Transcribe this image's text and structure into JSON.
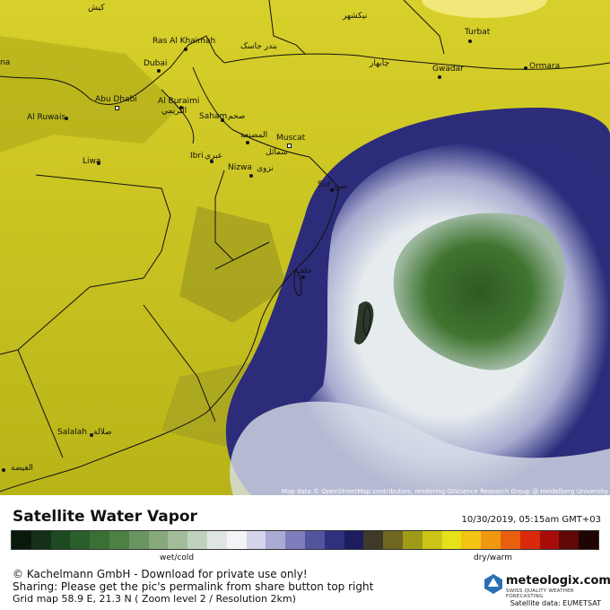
{
  "map": {
    "attribution": "Map data © OpenStreetMap contributors, rendering GIScience Research Group @ Heidelberg University",
    "places": [
      {
        "id": "kish",
        "label": "کیش"
      },
      {
        "id": "bandar",
        "label": "بندر جاسک"
      },
      {
        "id": "rasalkhaimah",
        "label": "Ras Al Khaimah"
      },
      {
        "id": "dubai",
        "label": "Dubai"
      },
      {
        "id": "abudhabi",
        "label": "Abu Dhabi"
      },
      {
        "id": "alburaimi",
        "label": "Al Buraimi"
      },
      {
        "id": "alburaimi_ar",
        "label": "البريمي"
      },
      {
        "id": "alruwais",
        "label": "Al Ruwais"
      },
      {
        "id": "liwa",
        "label": "Liwa"
      },
      {
        "id": "saham",
        "label": "Saham"
      },
      {
        "id": "saham_ar",
        "label": "صحم"
      },
      {
        "id": "musanaa",
        "label": "المصنعة"
      },
      {
        "id": "muscat",
        "label": "Muscat"
      },
      {
        "id": "ibri",
        "label": "Ibri"
      },
      {
        "id": "ibri_ar",
        "label": "عبري"
      },
      {
        "id": "samail",
        "label": "سمائل"
      },
      {
        "id": "nizwa",
        "label": "Nizwa"
      },
      {
        "id": "nizwa_ar",
        "label": "نزوى"
      },
      {
        "id": "sur",
        "label": "Sur"
      },
      {
        "id": "sur_ar",
        "label": "صور"
      },
      {
        "id": "turbat",
        "label": "Turbat"
      },
      {
        "id": "gwadar",
        "label": "Gwadar"
      },
      {
        "id": "ormara",
        "label": "Ormara"
      },
      {
        "id": "chabahar",
        "label": "چابهار"
      },
      {
        "id": "nikshahr",
        "label": "نیکشهر"
      },
      {
        "id": "masirah",
        "label": "حلف"
      },
      {
        "id": "salalah",
        "label": "Salalah"
      },
      {
        "id": "salalah_ar",
        "label": "صلالة"
      },
      {
        "id": "alghaydah",
        "label": "الغيضة"
      },
      {
        "id": "na",
        "label": "na"
      }
    ]
  },
  "footer": {
    "title": "Satellite Water Vapor",
    "timestamp": "10/30/2019, 05:15am GMT+03",
    "scale_left": "wet/cold",
    "scale_right": "dry/warm",
    "credit1": "© Kachelmann GmbH - Download for private use only!",
    "credit2": "Sharing: Please get the pic's permalink from share button top right",
    "credit3": "Grid map 58.9 E, 21.3 N ( Zoom level 2 / Resolution 2km)",
    "brand": "meteologix.com",
    "brand_sub": "SWISS QUALITY WEATHER FORECASTING",
    "satellite_source": "Satellite data: EUMETSAT"
  },
  "colors": {
    "dry_yellow": "#c8c21a",
    "moist_green": "#3a6e2a",
    "cloud_white": "#e8eef0",
    "cloud_blue": "#2a2a78"
  }
}
